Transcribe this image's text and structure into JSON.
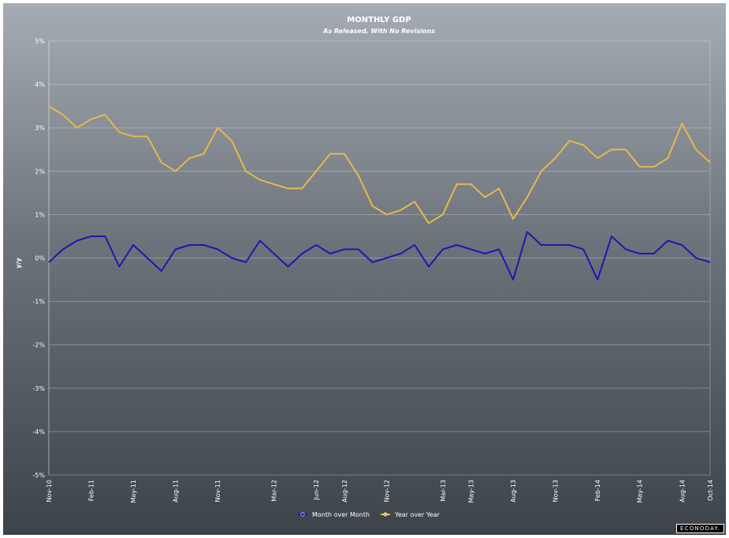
{
  "chart_data": {
    "type": "line",
    "title": "MONTHLY GDP",
    "subtitle": "As Released, With No Revisions",
    "ylabel": "y/y",
    "xlabel": "",
    "ylim": [
      -5,
      5
    ],
    "yticks": [
      5,
      4,
      3,
      2,
      1,
      0,
      -1,
      -2,
      -3,
      -4,
      -5
    ],
    "ytick_labels": [
      "5%",
      "4%",
      "3%",
      "2%",
      "1%",
      "0%",
      "-1%",
      "-2%",
      "-3%",
      "-4%",
      "-5%"
    ],
    "x": [
      "Nov-10",
      "Dec-10",
      "Jan-11",
      "Feb-11",
      "Mar-11",
      "Apr-11",
      "May-11",
      "Jun-11",
      "Jul-11",
      "Aug-11",
      "Sep-11",
      "Oct-11",
      "Nov-11",
      "Dec-11",
      "Jan-12",
      "Feb-12",
      "Mar-12",
      "Apr-12",
      "May-12",
      "Jun-12",
      "Jul-12",
      "Aug-12",
      "Sep-12",
      "Oct-12",
      "Nov-12",
      "Dec-12",
      "Jan-13",
      "Feb-13",
      "Mar-13",
      "Apr-13",
      "May-13",
      "Jun-13",
      "Jul-13",
      "Aug-13",
      "Sep-13",
      "Oct-13",
      "Nov-13",
      "Dec-13",
      "Jan-14",
      "Feb-14",
      "Mar-14",
      "Apr-14",
      "May-14",
      "Jun-14",
      "Jul-14",
      "Aug-14",
      "Sep-14",
      "Oct-14"
    ],
    "x_tick_labels": [
      "Nov-10",
      "Feb-11",
      "May-11",
      "Aug-11",
      "Nov-11",
      "Mar-12",
      "Jun-12",
      "Aug-12",
      "Nov-12",
      "Mar-13",
      "May-13",
      "Aug-13",
      "Nov-13",
      "Feb-14",
      "May-14",
      "Aug-14",
      "Oct-14"
    ],
    "series": [
      {
        "name": "Month over Month",
        "color": "#1a1ab0",
        "values": [
          -0.1,
          0.2,
          0.4,
          0.5,
          0.5,
          -0.2,
          0.3,
          0.0,
          -0.3,
          0.2,
          0.3,
          0.3,
          0.2,
          0.0,
          -0.1,
          0.4,
          0.1,
          -0.2,
          0.1,
          0.3,
          0.1,
          0.2,
          0.2,
          -0.1,
          0.0,
          0.1,
          0.3,
          -0.2,
          0.2,
          0.3,
          0.2,
          0.1,
          0.2,
          -0.5,
          0.6,
          0.3,
          0.3,
          0.3,
          0.2,
          -0.5,
          0.5,
          0.2,
          0.1,
          0.1,
          0.4,
          0.3,
          0.0,
          -0.1
        ]
      },
      {
        "name": "Year over Year",
        "color": "#e8b84a",
        "values": [
          3.5,
          3.3,
          3.0,
          3.2,
          3.3,
          2.9,
          2.8,
          2.8,
          2.2,
          2.0,
          2.3,
          2.4,
          3.0,
          2.7,
          2.0,
          1.8,
          1.7,
          1.6,
          1.6,
          2.0,
          2.4,
          2.4,
          1.9,
          1.2,
          1.0,
          1.1,
          1.3,
          0.8,
          1.0,
          1.7,
          1.7,
          1.4,
          1.6,
          0.9,
          1.4,
          2.0,
          2.3,
          2.7,
          2.6,
          2.3,
          2.5,
          2.5,
          2.1,
          2.1,
          2.3,
          3.1,
          2.5,
          2.2
        ]
      }
    ],
    "grid": true,
    "legend_position": "bottom-center"
  },
  "watermark": "ECONODAY."
}
